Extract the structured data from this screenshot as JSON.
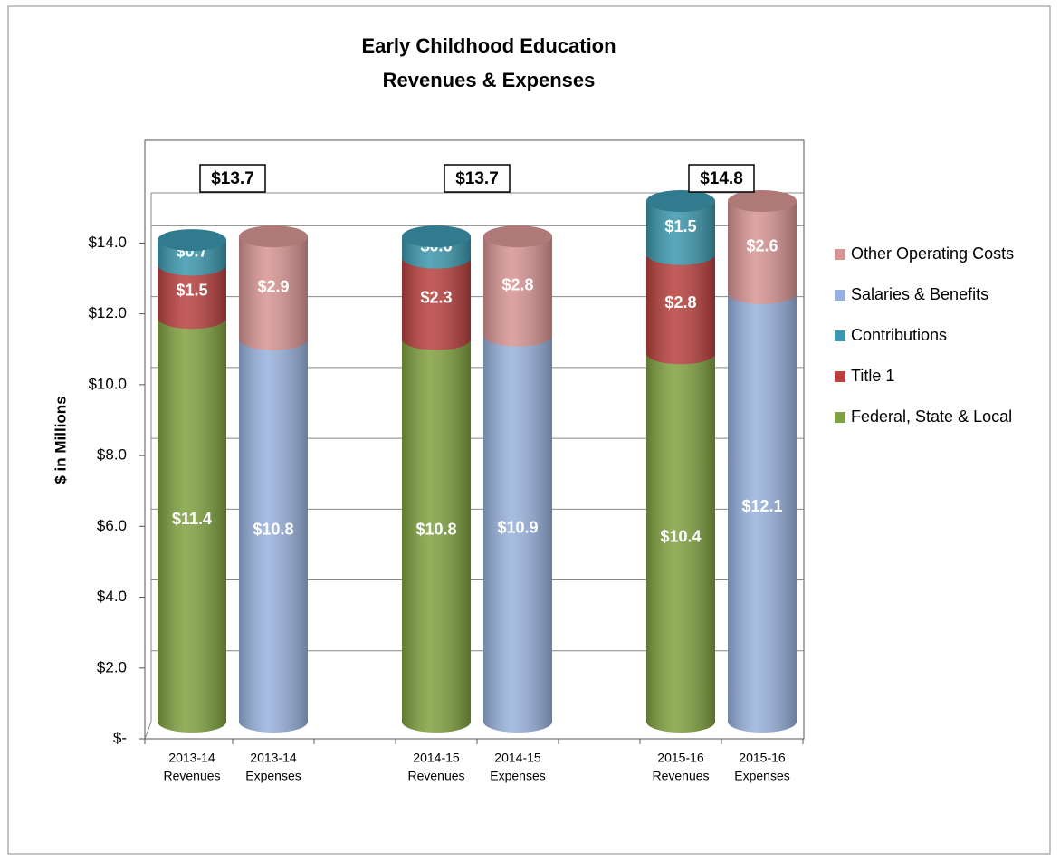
{
  "chart_data": {
    "type": "stacked-cylinder",
    "title": "Early Childhood Education",
    "subtitle": "Revenues & Expenses",
    "y_label": "$ in Millions",
    "categories": [
      [
        "2013-14",
        "Revenues"
      ],
      [
        "2013-14",
        "Expenses"
      ],
      null,
      [
        "2014-15",
        "Revenues"
      ],
      [
        "2014-15",
        "Expenses"
      ],
      null,
      [
        "2015-16",
        "Revenues"
      ],
      [
        "2015-16",
        "Expenses"
      ]
    ],
    "series": [
      {
        "name": "Federal, State & Local",
        "color": "#7fa13f",
        "values": [
          11.4,
          null,
          null,
          10.8,
          null,
          null,
          10.4,
          null
        ],
        "value_labels": [
          "$11.4",
          null,
          null,
          "$10.8",
          null,
          null,
          "$10.4",
          null
        ]
      },
      {
        "name": "Title 1",
        "color": "#b8403e",
        "values": [
          1.5,
          null,
          null,
          2.3,
          null,
          null,
          2.8,
          null
        ],
        "value_labels": [
          "$1.5",
          null,
          null,
          "$2.3",
          null,
          null,
          "$2.8",
          null
        ]
      },
      {
        "name": "Contributions",
        "color": "#3b97ad",
        "values": [
          0.7,
          null,
          null,
          0.6,
          null,
          null,
          1.5,
          null
        ],
        "value_labels": [
          "$0.7",
          null,
          null,
          "$0.6",
          null,
          null,
          "$1.5",
          null
        ]
      },
      {
        "name": "Salaries & Benefits",
        "color": "#97b1dc",
        "values": [
          null,
          10.8,
          null,
          null,
          10.9,
          null,
          null,
          12.1
        ],
        "value_labels": [
          null,
          "$10.8",
          null,
          null,
          "$10.9",
          null,
          null,
          "$12.1"
        ]
      },
      {
        "name": "Other Operating Costs",
        "color": "#d69492",
        "values": [
          null,
          2.9,
          null,
          null,
          2.8,
          null,
          null,
          2.6
        ],
        "value_labels": [
          null,
          "$2.9",
          null,
          null,
          "$2.8",
          null,
          null,
          "$2.6"
        ]
      }
    ],
    "annotations": [
      "$13.7",
      "$13.7",
      "$14.8"
    ],
    "ylim": [
      0,
      16.9
    ],
    "yticks": [
      {
        "value": 0,
        "label": "$-"
      },
      {
        "value": 2,
        "label": "$2.0"
      },
      {
        "value": 4,
        "label": "$4.0"
      },
      {
        "value": 6,
        "label": "$6.0"
      },
      {
        "value": 8,
        "label": "$8.0"
      },
      {
        "value": 10,
        "label": "$10.0"
      },
      {
        "value": 12,
        "label": "$12.0"
      },
      {
        "value": 14,
        "label": "$14.0"
      }
    ],
    "grid": true,
    "legend": "right"
  }
}
